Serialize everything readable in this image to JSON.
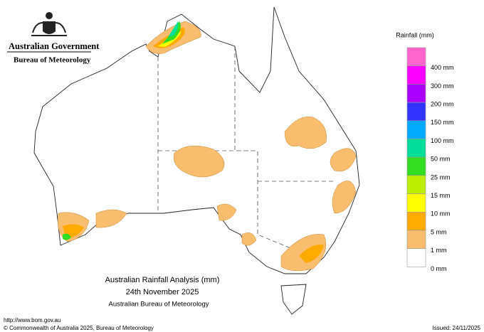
{
  "header": {
    "government": "Australian Government",
    "agency": "Bureau of Meteorology"
  },
  "legend": {
    "title": "Rainfall (mm)",
    "swatches": [
      "#ff66cc",
      "#ff00ff",
      "#aa00ff",
      "#3333ff",
      "#00aaff",
      "#00dd99",
      "#33dd22",
      "#bbee00",
      "#ffff00",
      "#ffaa00",
      "#f8bd6e",
      "#ffffff"
    ],
    "labels": [
      "400 mm",
      "300 mm",
      "200 mm",
      "150 mm",
      "100 mm",
      "50 mm",
      "25 mm",
      "15 mm",
      "10 mm",
      "5 mm",
      "1 mm",
      "0 mm"
    ]
  },
  "caption": {
    "title": "Australian Rainfall Analysis (mm)",
    "date": "24th November 2025",
    "source": "Australian Bureau of Meteorology"
  },
  "footer": {
    "url": "http://www.bom.gov.au",
    "copyright": "© Commonwealth of Australia 2025, Bureau of Meteorology",
    "issued": "Issued: 24/11/2025"
  }
}
